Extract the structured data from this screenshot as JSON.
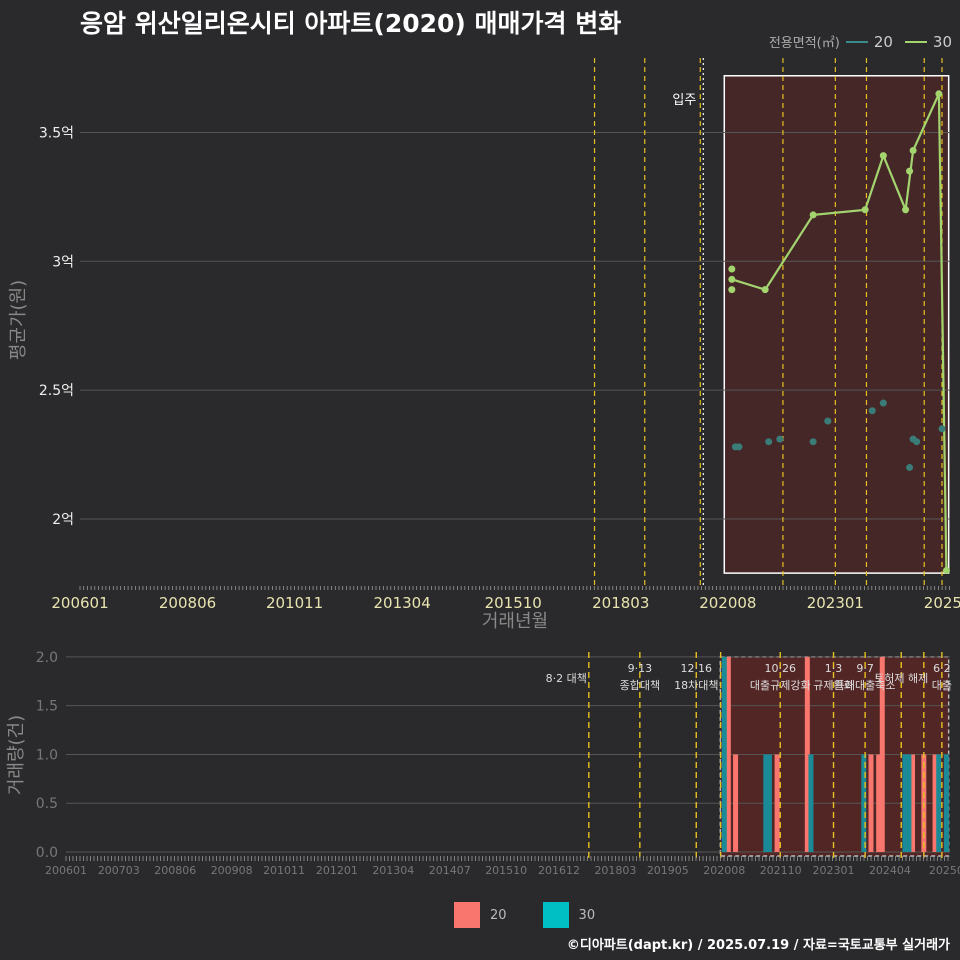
{
  "title": "응암 위산일리온시티 아파트(2020) 매매가격 변화",
  "footer": "©디아파트(dapt.kr) / 2025.07.19 / 자료=국토교통부 실거래가",
  "legend_top": {
    "title": "전용면적(㎡)",
    "items": [
      {
        "label": "20",
        "color": "#3a8a8c"
      },
      {
        "label": "30",
        "color": "#a3d46e"
      }
    ]
  },
  "legend_bottom": {
    "items": [
      {
        "label": "20",
        "color": "#f8766d"
      },
      {
        "label": "30",
        "color": "#00bfc4"
      }
    ]
  },
  "colors": {
    "background": "#2a2a2c",
    "grid": "#555555",
    "policy_line": "#e6c020",
    "highlight_fill": "#5a2626",
    "price_20": "#3a7c78",
    "price_30": "#a3d46e",
    "vol_20": "#f8766d",
    "vol_30": "#1a8a96"
  },
  "chart_data": [
    {
      "type": "line",
      "title": "응암 위산일리온시티 아파트(2020) 매매가격 변화",
      "xlabel": "거래년월",
      "ylabel": "평균가(원)",
      "xlim": [
        2006.0,
        2025.58
      ],
      "ylim": [
        1.74,
        3.82
      ],
      "x_ticks": [
        {
          "v": 2006.0,
          "label": "200601"
        },
        {
          "v": 2008.42,
          "label": "200806"
        },
        {
          "v": 2010.83,
          "label": "201011"
        },
        {
          "v": 2013.25,
          "label": "201304"
        },
        {
          "v": 2015.75,
          "label": "201510"
        },
        {
          "v": 2018.17,
          "label": "201803"
        },
        {
          "v": 2020.58,
          "label": "202008"
        },
        {
          "v": 2023.0,
          "label": "202301"
        },
        {
          "v": 2025.42,
          "label": "2025"
        }
      ],
      "y_ticks": [
        {
          "v": 2.0,
          "label": "2억"
        },
        {
          "v": 2.5,
          "label": "2.5억"
        },
        {
          "v": 3.0,
          "label": "3억"
        },
        {
          "v": 3.5,
          "label": "3.5억"
        }
      ],
      "policy_lines": [
        2017.58,
        2018.71,
        2019.96,
        2021.82,
        2023.0,
        2023.7,
        2025.0,
        2025.4
      ],
      "occupancy": {
        "x": 2019.96,
        "label": "입주"
      },
      "highlight": {
        "x0": 2020.5,
        "x1": 2025.55,
        "y0": 1.79,
        "y1": 3.72
      },
      "series": [
        {
          "name": "30",
          "points": [
            [
              2020.67,
              2.93
            ],
            [
              2021.42,
              2.89
            ],
            [
              2022.5,
              3.18
            ],
            [
              2023.67,
              3.2
            ],
            [
              2024.08,
              3.41
            ],
            [
              2024.58,
              3.2
            ],
            [
              2024.75,
              3.43
            ],
            [
              2025.33,
              3.65
            ],
            [
              2025.5,
              1.8
            ]
          ],
          "extra_points": [
            [
              2020.67,
              2.97
            ],
            [
              2020.67,
              2.89
            ],
            [
              2024.67,
              3.35
            ]
          ]
        },
        {
          "name": "20",
          "points": [
            [
              2024.75,
              2.31
            ],
            [
              2024.83,
              2.3
            ]
          ],
          "extra_points": [
            [
              2020.75,
              2.28
            ],
            [
              2020.83,
              2.28
            ],
            [
              2021.5,
              2.3
            ],
            [
              2021.75,
              2.31
            ],
            [
              2022.5,
              2.3
            ],
            [
              2022.83,
              2.38
            ],
            [
              2023.83,
              2.42
            ],
            [
              2024.08,
              2.45
            ],
            [
              2024.67,
              2.2
            ],
            [
              2025.4,
              2.35
            ]
          ]
        }
      ]
    },
    {
      "type": "bar",
      "ylabel": "거래량(건)",
      "xlim": [
        2006.0,
        2025.58
      ],
      "ylim": [
        0,
        2.05
      ],
      "y_ticks": [
        {
          "v": 0.0,
          "label": "0.0"
        },
        {
          "v": 0.5,
          "label": "0.5"
        },
        {
          "v": 1.0,
          "label": "1.0"
        },
        {
          "v": 1.5,
          "label": "1.5"
        },
        {
          "v": 2.0,
          "label": "2.0"
        }
      ],
      "x_ticks": [
        {
          "v": 2006.0,
          "label": "200601"
        },
        {
          "v": 2007.17,
          "label": "200703"
        },
        {
          "v": 2008.42,
          "label": "200806"
        },
        {
          "v": 2009.67,
          "label": "200908"
        },
        {
          "v": 2010.83,
          "label": "201011"
        },
        {
          "v": 2012.0,
          "label": "201201"
        },
        {
          "v": 2013.25,
          "label": "201304"
        },
        {
          "v": 2014.5,
          "label": "201407"
        },
        {
          "v": 2015.75,
          "label": "201510"
        },
        {
          "v": 2016.92,
          "label": "201612"
        },
        {
          "v": 2018.17,
          "label": "201803"
        },
        {
          "v": 2019.33,
          "label": "201905"
        },
        {
          "v": 2020.58,
          "label": "202008"
        },
        {
          "v": 2021.83,
          "label": "202110"
        },
        {
          "v": 2023.0,
          "label": "202301"
        },
        {
          "v": 2024.25,
          "label": "202404"
        },
        {
          "v": 2025.5,
          "label": "20250"
        }
      ],
      "policy_lines": [
        2017.58,
        2018.71,
        2019.96,
        2020.5,
        2021.82,
        2023.0,
        2023.7,
        2024.5,
        2025.0,
        2025.4
      ],
      "highlight": {
        "x0": 2020.58,
        "x1": 2025.55,
        "y0": 0,
        "y1": 2.0
      },
      "annotations": [
        {
          "x": 2017.58,
          "lines": [
            "8·2 대책"
          ],
          "side": "left"
        },
        {
          "x": 2018.71,
          "lines": [
            "9·13",
            "종합대책"
          ],
          "side": "center"
        },
        {
          "x": 2019.96,
          "lines": [
            "12·16",
            "18차대책"
          ],
          "side": "center"
        },
        {
          "x": 2021.82,
          "lines": [
            "10·26",
            "대출규제강화"
          ],
          "side": "center"
        },
        {
          "x": 2023.0,
          "lines": [
            "1·3",
            "규제완화"
          ],
          "side": "center"
        },
        {
          "x": 2023.7,
          "lines": [
            "9·7",
            "특례대출축소"
          ],
          "side": "center"
        },
        {
          "x": 2024.5,
          "lines": [
            "토허제 해제"
          ],
          "side": "center"
        },
        {
          "x": 2025.4,
          "lines": [
            "6·2",
            "대출"
          ],
          "side": "center"
        }
      ],
      "series": [
        {
          "name": "20",
          "bars": [
            [
              2020.67,
              2
            ],
            [
              2020.83,
              1
            ],
            [
              2021.75,
              1
            ],
            [
              2022.42,
              2
            ],
            [
              2023.83,
              1
            ],
            [
              2024.0,
              1
            ],
            [
              2024.08,
              2
            ],
            [
              2024.75,
              1
            ],
            [
              2025.0,
              1
            ],
            [
              2025.25,
              1
            ]
          ]
        },
        {
          "name": "30",
          "bars": [
            [
              2020.58,
              2
            ],
            [
              2021.5,
              1
            ],
            [
              2021.58,
              1
            ],
            [
              2022.5,
              1
            ],
            [
              2023.67,
              1
            ],
            [
              2024.58,
              1
            ],
            [
              2024.67,
              1
            ],
            [
              2025.33,
              1
            ],
            [
              2025.5,
              1
            ]
          ]
        }
      ]
    }
  ]
}
